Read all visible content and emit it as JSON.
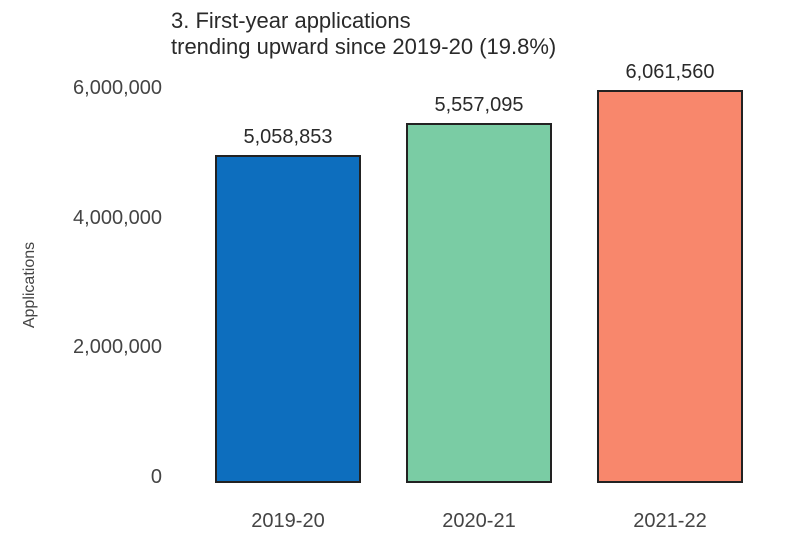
{
  "chart_data": {
    "type": "bar",
    "title": "3. First-year applications trending upward since 2019-20 (19.8%)",
    "title_lines": [
      "3. First-year applications",
      "trending upward since 2019-20 (19.8%)"
    ],
    "xlabel": "",
    "ylabel": "Applications",
    "categories": [
      "2019-20",
      "2020-21",
      "2021-22"
    ],
    "values": [
      5058853,
      5557095,
      6061560
    ],
    "value_labels": [
      "5,058,853",
      "5,557,095",
      "6,061,560"
    ],
    "bar_colors": [
      "#0d6ebe",
      "#7acca4",
      "#f8876c"
    ],
    "bar_border_color": "#222222",
    "yticks": [
      {
        "value": 0,
        "label": "0"
      },
      {
        "value": 2000000,
        "label": "2,000,000"
      },
      {
        "value": 4000000,
        "label": "4,000,000"
      },
      {
        "value": 6000000,
        "label": "6,000,000"
      }
    ],
    "ylim": [
      0,
      6500000
    ],
    "grid": false,
    "legend": false,
    "colors": {
      "title_text": "#2a2a2a",
      "tick_text": "#444444",
      "background": "#ffffff"
    }
  }
}
